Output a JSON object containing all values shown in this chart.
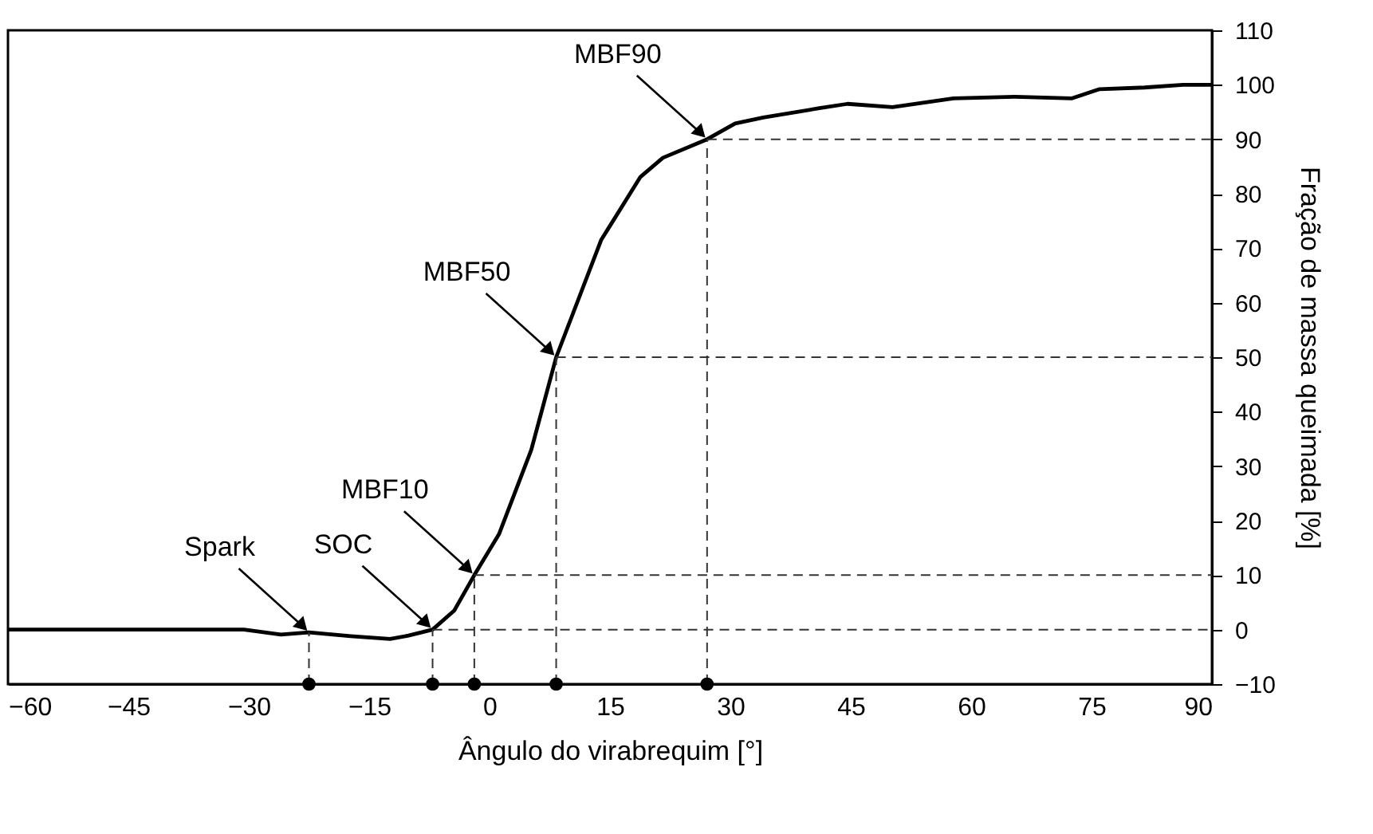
{
  "chart_data": {
    "type": "line",
    "xlabel": "Ângulo do virabrequim [°]",
    "ylabel": "Fração de massa queimada [%]",
    "x": [
      -60,
      -45,
      -35,
      -30.6,
      -26,
      -22.5,
      -17.3,
      -12.4,
      -10.1,
      -7.1,
      -4.4,
      -1.9,
      1.2,
      5.2,
      8.3,
      13.9,
      18.8,
      21.6,
      27.1,
      30.6,
      34.1,
      41.1,
      44.6,
      50.2,
      57.8,
      65.5,
      72.5,
      76,
      81.6,
      86.4,
      90
    ],
    "series": [
      {
        "color": "#000000",
        "values": [
          0,
          0,
          0,
          0,
          -0.9,
          -0.5,
          -1.2,
          -1.7,
          -1.1,
          0,
          3.5,
          10,
          17.6,
          33,
          50,
          71.5,
          83.1,
          86.6,
          90,
          92.9,
          94,
          95.7,
          96.5,
          95.9,
          97.5,
          97.8,
          97.5,
          99.2,
          99.5,
          100,
          100
        ]
      },
      {
        "color": "#333333",
        "line_style": "dashed",
        "x": [
          90,
          -7.1
        ],
        "values": [
          0,
          0
        ]
      },
      {
        "color": "#333333",
        "line_style": "dashed",
        "x": [
          90,
          -1.9
        ],
        "values": [
          10,
          10
        ]
      },
      {
        "color": "#333333",
        "line_style": "dashed",
        "x": [
          90,
          8.3
        ],
        "values": [
          50,
          50
        ]
      },
      {
        "color": "#333333",
        "line_style": "dashed",
        "x": [
          90,
          27.1
        ],
        "values": [
          90,
          90
        ]
      },
      {
        "type": "scatter",
        "color": "#000000",
        "line_style": "dashed",
        "x": [
          -22.5,
          -7.1,
          -1.9,
          8.3,
          27.1
        ],
        "values": [
          -10,
          -10,
          -10,
          -10,
          -10
        ],
        "errors": [
          [
            -10,
            -0.5
          ],
          [
            -10,
            0
          ],
          [
            -10,
            10
          ],
          [
            -10,
            50
          ],
          [
            -10,
            90
          ]
        ]
      }
    ],
    "xlim": [
      -60,
      90
    ],
    "xticks": [
      -60,
      -45,
      -30,
      -15,
      0,
      15,
      30,
      45,
      60,
      75,
      90
    ],
    "ylim": [
      -10,
      110
    ],
    "yticks": [
      -10,
      0,
      10,
      20,
      30,
      40,
      50,
      60,
      70,
      80,
      90,
      100,
      110
    ],
    "annotations": [
      {
        "text": "Spark",
        "x": -22.5,
        "y": -0.5
      },
      {
        "text": "SOC",
        "x": -7.1,
        "y": 0
      },
      {
        "text": "MBF10",
        "x": -1.9,
        "y": 10
      },
      {
        "text": "MBF50",
        "x": 8.3,
        "y": 50
      },
      {
        "text": "MBF90",
        "x": 27.1,
        "y": 90
      }
    ],
    "line_style": "solid"
  }
}
